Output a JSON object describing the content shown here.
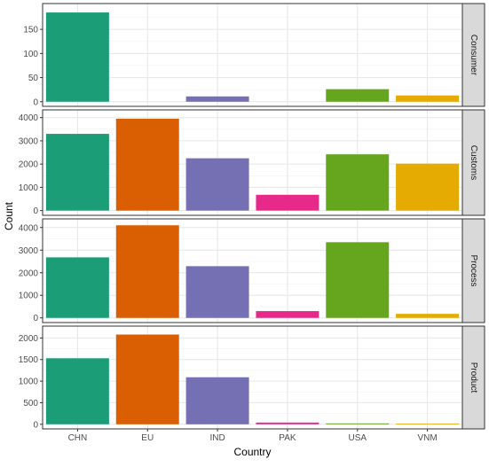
{
  "chart_data": {
    "type": "bar",
    "xlabel": "Country",
    "ylabel": "Count",
    "categories": [
      "CHN",
      "EU",
      "IND",
      "PAK",
      "USA",
      "VNM"
    ],
    "colors": {
      "CHN": "#1b9e77",
      "EU": "#d95f02",
      "IND": "#7570b3",
      "PAK": "#e7298a",
      "USA": "#66a61e",
      "VNM": "#e6ab02"
    },
    "grid": true,
    "facets": [
      {
        "label": "Consumer",
        "values": [
          185,
          0,
          11,
          0,
          26,
          13
        ],
        "ylim": [
          0,
          195
        ],
        "yticks": [
          0,
          50,
          100,
          150
        ],
        "ytick_labels": [
          "0",
          "50",
          "100",
          "150"
        ]
      },
      {
        "label": "Customs",
        "values": [
          3300,
          3950,
          2250,
          680,
          2420,
          2020
        ],
        "ylim": [
          0,
          4150
        ],
        "yticks": [
          0,
          1000,
          2000,
          3000,
          4000
        ],
        "ytick_labels": [
          "0",
          "1000",
          "2000",
          "3000",
          "4000"
        ]
      },
      {
        "label": "Process",
        "values": [
          2680,
          4100,
          2290,
          300,
          3350,
          180
        ],
        "ylim": [
          0,
          4200
        ],
        "yticks": [
          0,
          1000,
          2000,
          3000,
          4000
        ],
        "ytick_labels": [
          "0",
          "1000",
          "2000",
          "3000",
          "4000"
        ]
      },
      {
        "label": "Product",
        "values": [
          1530,
          2080,
          1090,
          40,
          20,
          15
        ],
        "ylim": [
          0,
          2180
        ],
        "yticks": [
          0,
          500,
          1000,
          1500,
          2000
        ],
        "ytick_labels": [
          "0",
          "500",
          "1000",
          "1500",
          "2000"
        ]
      }
    ]
  }
}
